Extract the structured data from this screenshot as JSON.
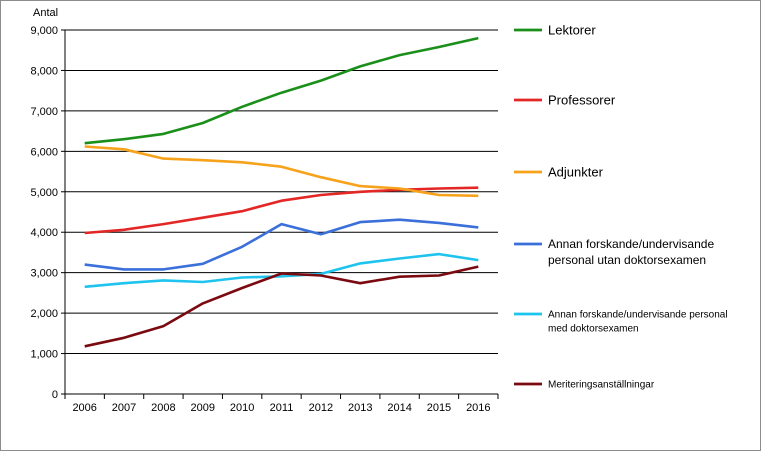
{
  "chart_data": {
    "type": "line",
    "title": "",
    "xlabel": "",
    "ylabel": "Antal",
    "x": [
      "2006",
      "2007",
      "2008",
      "2009",
      "2010",
      "2011",
      "2012",
      "2013",
      "2014",
      "2015",
      "2016"
    ],
    "ylim": [
      0,
      9000
    ],
    "yticks": [
      "0",
      "1,000",
      "2,000",
      "3,000",
      "4,000",
      "5,000",
      "6,000",
      "7,000",
      "8,000",
      "9,000"
    ],
    "grid": "horizontal",
    "legend_position": "right",
    "series": [
      {
        "name": "Lektorer",
        "color": "#1a8f1a",
        "values": [
          6200,
          6300,
          6430,
          6700,
          7100,
          7450,
          7750,
          8100,
          8380,
          8580,
          8800
        ]
      },
      {
        "name": "Professorer",
        "color": "#e32626",
        "values": [
          3980,
          4060,
          4200,
          4360,
          4520,
          4780,
          4920,
          5000,
          5050,
          5080,
          5100
        ]
      },
      {
        "name": "Adjunkter",
        "color": "#f7a21b",
        "values": [
          6120,
          6050,
          5820,
          5780,
          5730,
          5620,
          5360,
          5140,
          5080,
          4920,
          4900
        ]
      },
      {
        "name": "Annan forskande/undervisande personal utan doktorsexamen",
        "color": "#3b6fd9",
        "values": [
          3200,
          3080,
          3080,
          3220,
          3640,
          4200,
          3950,
          4250,
          4310,
          4230,
          4120
        ]
      },
      {
        "name": "Annan forskande/undervisande personal med doktorsexamen",
        "color": "#1ec4ee",
        "values": [
          2650,
          2740,
          2810,
          2770,
          2880,
          2910,
          2970,
          3230,
          3350,
          3460,
          3310
        ]
      },
      {
        "name": "Meriteringsanställningar",
        "color": "#7a0a10",
        "values": [
          1180,
          1390,
          1680,
          2240,
          2620,
          2980,
          2930,
          2740,
          2900,
          2930,
          3150
        ]
      }
    ]
  },
  "legend": {
    "items": [
      {
        "lines": [
          "Lektorer"
        ]
      },
      {
        "lines": [
          "Professorer"
        ]
      },
      {
        "lines": [
          "Adjunkter"
        ]
      },
      {
        "lines": [
          "Annan forskande/undervisande",
          "personal utan doktorsexamen"
        ]
      },
      {
        "lines": [
          "Annan forskande/undervisande personal",
          "med doktorsexamen"
        ]
      },
      {
        "lines": [
          "Meriteringsanställningar"
        ]
      }
    ]
  }
}
